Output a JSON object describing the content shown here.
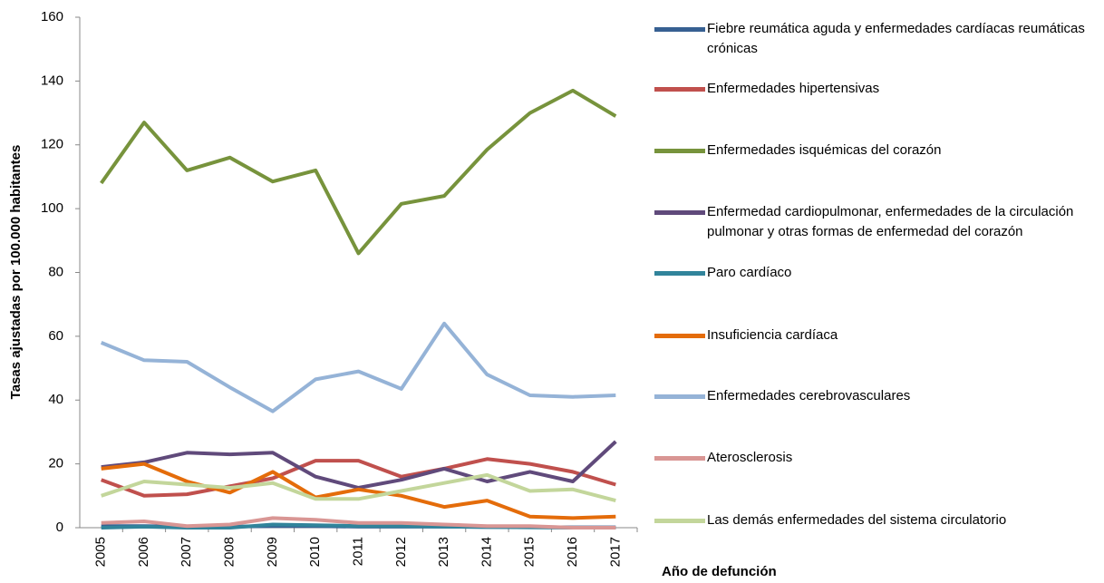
{
  "chart_data": {
    "type": "line",
    "y_axis_label": "Tasas ajustadas por 100.000 habitantes",
    "x_axis_label": "Año de defunción",
    "categories": [
      "2005",
      "2006",
      "2007",
      "2008",
      "2009",
      "2010",
      "2011",
      "2012",
      "2013",
      "2014",
      "2015",
      "2016",
      "2017"
    ],
    "ylim": [
      0,
      160
    ],
    "yticks": [
      0,
      20,
      40,
      60,
      80,
      100,
      120,
      140,
      160
    ],
    "series": [
      {
        "name": "Fiebre reumática aguda y enfermedades cardíacas reumáticas crónicas",
        "color": "#376092",
        "values": [
          0.5,
          0.5,
          0.3,
          0.3,
          0.5,
          0.5,
          0.3,
          0.3,
          0.3,
          0.2,
          0.2,
          0.1,
          0.1
        ]
      },
      {
        "name": "Enfermedades hipertensivas",
        "color": "#c0504d",
        "values": [
          15,
          10,
          10.5,
          13,
          15.5,
          21,
          21,
          16,
          18.5,
          21.5,
          20,
          17.5,
          13.5
        ]
      },
      {
        "name": "Enfermedades isquémicas del corazón",
        "color": "#77933c",
        "values": [
          108,
          127,
          112,
          116,
          108.5,
          112,
          86,
          101.5,
          104,
          118.5,
          130,
          137,
          129
        ]
      },
      {
        "name": "Enfermedad cardiopulmonar, enfermedades de la circulación pulmonar y otras formas de enfermedad del corazón",
        "color": "#604a7b",
        "values": [
          19,
          20.5,
          23.5,
          23,
          23.5,
          16,
          12.5,
          15,
          18.5,
          14.5,
          17.5,
          14.5,
          27
        ]
      },
      {
        "name": "Paro cardíaco",
        "color": "#31849b",
        "values": [
          0,
          0.3,
          0,
          0,
          1,
          0.8,
          0.5,
          0.5,
          0.3,
          0.2,
          0.1,
          0,
          0
        ]
      },
      {
        "name": "Insuficiencia cardíaca",
        "color": "#e46c0a",
        "values": [
          18.5,
          20,
          14.5,
          11,
          17.5,
          9.5,
          12,
          10,
          6.5,
          8.5,
          3.5,
          3,
          3.5
        ]
      },
      {
        "name": "Enfermedades cerebrovasculares",
        "color": "#95b3d7",
        "values": [
          58,
          52.5,
          52,
          44,
          36.5,
          46.5,
          49,
          43.5,
          64,
          48,
          41.5,
          41,
          41.5
        ]
      },
      {
        "name": "Aterosclerosis",
        "color": "#d99694",
        "values": [
          1.5,
          2,
          0.5,
          1,
          3,
          2.5,
          1.5,
          1.5,
          1,
          0.5,
          0.5,
          0,
          0
        ]
      },
      {
        "name": "Las demás enfermedades del sistema circulatorio",
        "color": "#c3d69b",
        "values": [
          10,
          14.5,
          13.5,
          12.5,
          14,
          9,
          9,
          11.5,
          14,
          16.5,
          11.5,
          12,
          8.5
        ]
      }
    ]
  }
}
